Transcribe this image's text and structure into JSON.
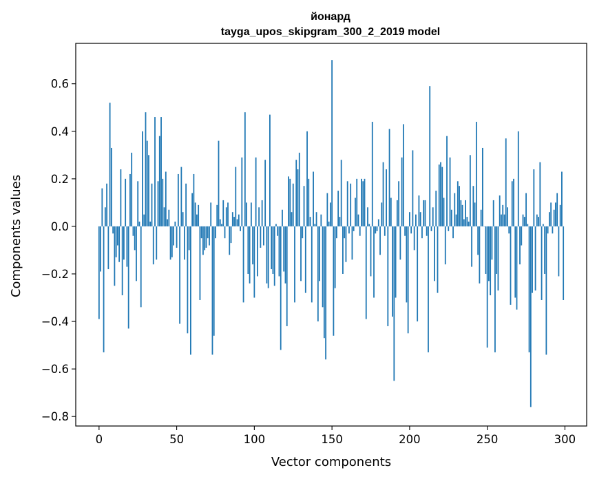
{
  "chart_data": {
    "type": "bar",
    "title": "йонард",
    "subtitle": "tayga_upos_skipgram_300_2_2019 model",
    "xlabel": "Vector components",
    "ylabel": "Components values",
    "xlim": [
      -15,
      314
    ],
    "ylim": [
      -0.84,
      0.77
    ],
    "xticks": [
      0,
      50,
      100,
      150,
      200,
      250,
      300
    ],
    "xtick_labels": [
      "0",
      "50",
      "100",
      "150",
      "200",
      "250",
      "300"
    ],
    "yticks": [
      -0.8,
      -0.6,
      -0.4,
      -0.2,
      0.0,
      0.2,
      0.4,
      0.6
    ],
    "ytick_labels": [
      "−0.8",
      "−0.6",
      "−0.4",
      "−0.2",
      "0.0",
      "0.2",
      "0.4",
      "0.6"
    ],
    "grid": false,
    "bar_color": "#1f77b4",
    "categories_range": [
      0,
      299
    ],
    "values": [
      -0.39,
      -0.19,
      0.16,
      -0.53,
      0.08,
      0.18,
      -0.18,
      0.52,
      0.33,
      -0.03,
      -0.25,
      -0.13,
      -0.08,
      -0.15,
      0.24,
      -0.29,
      -0.14,
      0.2,
      -0.17,
      -0.43,
      0.22,
      0.31,
      -0.04,
      -0.1,
      -0.23,
      0.19,
      0.02,
      -0.34,
      0.4,
      0.05,
      0.48,
      0.36,
      0.3,
      0.02,
      0.18,
      -0.16,
      0.46,
      -0.14,
      0.19,
      0.38,
      0.46,
      0.2,
      0.08,
      0.23,
      0.03,
      0.07,
      -0.14,
      -0.13,
      -0.08,
      0.02,
      -0.09,
      0.22,
      -0.41,
      0.25,
      0.06,
      -0.14,
      0.18,
      -0.45,
      -0.1,
      -0.54,
      0.14,
      0.22,
      0.1,
      0.05,
      0.09,
      -0.31,
      -0.05,
      -0.12,
      -0.1,
      -0.09,
      -0.05,
      -0.08,
      0.1,
      -0.54,
      -0.46,
      -0.05,
      0.09,
      0.36,
      0.03,
      0.01,
      0.11,
      -0.05,
      0.08,
      0.1,
      -0.12,
      -0.07,
      0.06,
      0.04,
      0.25,
      0.03,
      0.05,
      -0.02,
      0.29,
      -0.32,
      0.48,
      0.1,
      -0.2,
      -0.24,
      0.1,
      -0.16,
      -0.3,
      0.29,
      -0.21,
      0.08,
      -0.09,
      0.11,
      -0.08,
      0.28,
      -0.24,
      -0.26,
      0.47,
      -0.18,
      -0.2,
      -0.25,
      0.01,
      -0.04,
      -0.21,
      -0.52,
      0.07,
      -0.19,
      -0.24,
      -0.42,
      0.21,
      0.2,
      0.06,
      0.18,
      -0.32,
      0.28,
      0.24,
      0.31,
      -0.23,
      -0.05,
      0.17,
      -0.28,
      0.4,
      0.2,
      0.04,
      -0.32,
      0.23,
      0.01,
      0.06,
      -0.4,
      -0.23,
      0.05,
      -0.34,
      -0.47,
      -0.56,
      0.14,
      0.02,
      0.1,
      0.7,
      -0.46,
      -0.26,
      -0.05,
      0.15,
      0.04,
      0.28,
      -0.2,
      -0.05,
      -0.15,
      0.19,
      -0.03,
      0.18,
      -0.14,
      -0.02,
      0.12,
      0.2,
      0.05,
      -0.04,
      0.2,
      0.19,
      0.2,
      -0.39,
      0.08,
      0.01,
      -0.21,
      0.44,
      -0.3,
      -0.03,
      -0.02,
      0.03,
      -0.12,
      0.1,
      0.27,
      -0.04,
      0.24,
      -0.42,
      0.41,
      0.12,
      -0.38,
      -0.65,
      -0.3,
      0.11,
      0.19,
      -0.14,
      0.29,
      0.43,
      -0.04,
      -0.32,
      -0.45,
      0.06,
      -0.03,
      0.32,
      -0.1,
      0.05,
      -0.4,
      0.13,
      0.06,
      -0.05,
      0.11,
      0.11,
      -0.04,
      -0.53,
      0.59,
      -0.02,
      0.08,
      -0.23,
      0.15,
      -0.28,
      0.26,
      0.27,
      0.25,
      0.12,
      -0.16,
      0.38,
      -0.02,
      0.29,
      0.07,
      -0.05,
      0.14,
      0.05,
      0.19,
      0.17,
      0.11,
      0.09,
      0.03,
      0.11,
      0.04,
      0.02,
      0.3,
      -0.17,
      0.17,
      0.1,
      0.44,
      -0.12,
      -0.24,
      0.07,
      0.33,
      0.0,
      -0.2,
      -0.51,
      -0.23,
      -0.29,
      -0.14,
      0.11,
      -0.53,
      -0.2,
      -0.27,
      0.13,
      0.05,
      0.09,
      0.05,
      0.37,
      0.08,
      -0.03,
      -0.33,
      0.19,
      0.2,
      -0.3,
      -0.35,
      0.4,
      -0.16,
      -0.08,
      0.05,
      0.04,
      0.14,
      0.01,
      -0.53,
      -0.76,
      -0.28,
      0.24,
      -0.27,
      0.05,
      0.04,
      0.27,
      -0.31,
      0.01,
      -0.2,
      -0.54,
      -0.03,
      0.06,
      0.1,
      -0.03,
      0.07,
      0.1,
      0.14,
      -0.21,
      0.09,
      0.23,
      -0.31
    ]
  }
}
